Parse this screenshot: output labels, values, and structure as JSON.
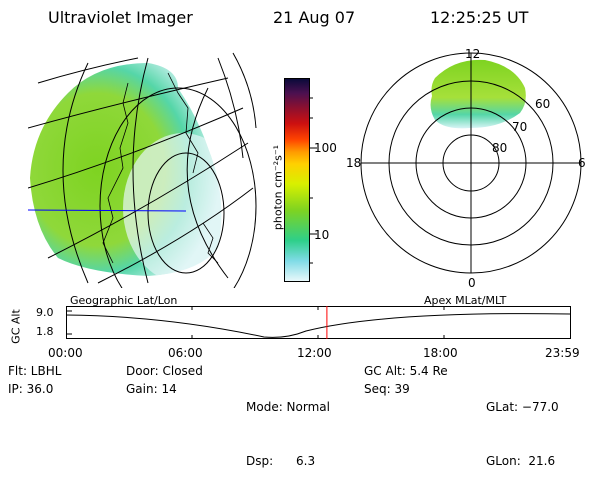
{
  "header": {
    "instrument": "Ultraviolet Imager",
    "date": "21 Aug 07",
    "time": "12:25:25 UT"
  },
  "colorbar": {
    "unit_label": "photon cm⁻²s⁻¹",
    "ticks": [
      "100",
      "10"
    ]
  },
  "polar": {
    "mlt_top": "12",
    "mlt_left": "18",
    "mlt_right": "6",
    "mlt_bottom": "0",
    "mlat_labels": [
      "60",
      "70",
      "80"
    ]
  },
  "timeline": {
    "left_label": "Geographic Lat/Lon",
    "right_label": "Apex MLat/MLT",
    "axis_label": "GC Alt",
    "y_ticks": [
      "9.0",
      "1.8"
    ],
    "x_ticks": [
      "00:00",
      "06:00",
      "12:00",
      "18:00",
      "23:59"
    ],
    "current_time_fraction": 0.5176
  },
  "status": {
    "col1": [
      "Flt: LBHL",
      "IP: 36.0"
    ],
    "col2": [
      "Door: Closed",
      "Gain: 14"
    ],
    "col3": [
      "Mode: Normal",
      "Dsp:      6.3"
    ],
    "col4": [
      "GC Alt: 5.4 Re",
      "Seq: 39"
    ],
    "col5": [
      "GLat: −77.0",
      "GLon:  21.6"
    ]
  },
  "colors": {
    "grid": "#000000",
    "meridian": "#0000ff",
    "marker": "#ff0000"
  }
}
